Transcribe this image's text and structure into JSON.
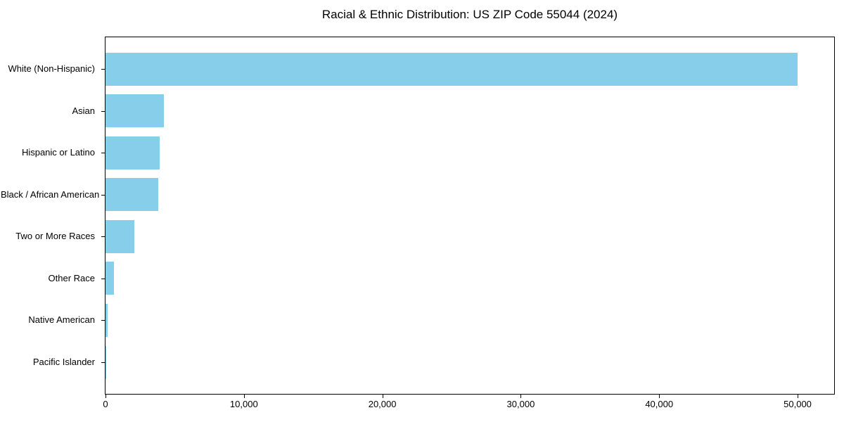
{
  "chart_data": {
    "type": "bar",
    "orientation": "horizontal",
    "title": "Racial & Ethnic Distribution: US ZIP Code 55044 (2024)",
    "categories": [
      "White (Non-Hispanic)",
      "Asian",
      "Hispanic or Latino",
      "Black / African American",
      "Two or More Races",
      "Other Race",
      "Native American",
      "Pacific Islander"
    ],
    "values": [
      50000,
      4200,
      3900,
      3800,
      2100,
      600,
      150,
      30
    ],
    "xlabel": "",
    "ylabel": "",
    "xlim": [
      0,
      52640
    ],
    "xticks": [
      0,
      10000,
      20000,
      30000,
      40000,
      50000
    ],
    "xtick_labels": [
      "0",
      "10,000",
      "20,000",
      "30,000",
      "40,000",
      "50,000"
    ],
    "bar_color": "#87CEEB",
    "background_color": "#ffffff",
    "axis_color": "#000000",
    "grid": false,
    "legend": "none"
  }
}
